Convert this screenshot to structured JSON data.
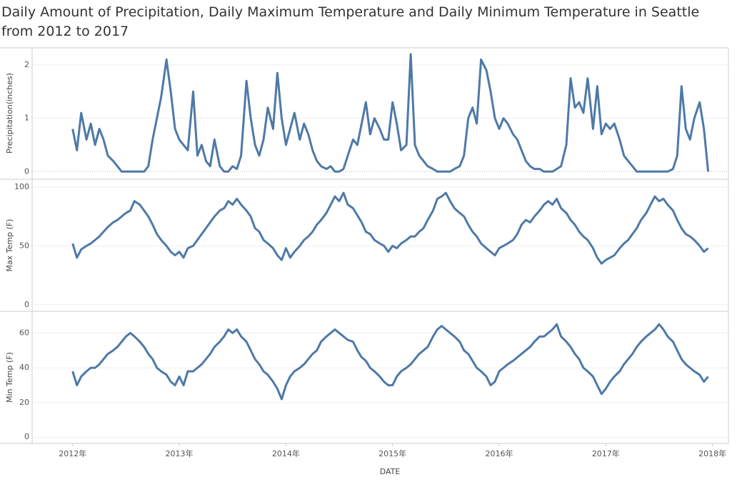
{
  "chart_data": {
    "type": "line",
    "title": "Daily Amount of Precipitation, Daily Maximum Temperature and Daily Minimum Temperature in Seattle from 2012 to 2017",
    "xlabel": "DATE",
    "xlim": [
      2011.62,
      2018.15
    ],
    "xticks": [
      {
        "value": 2012,
        "label": "2012年"
      },
      {
        "value": 2013,
        "label": "2013年"
      },
      {
        "value": 2014,
        "label": "2014年"
      },
      {
        "value": 2015,
        "label": "2015年"
      },
      {
        "value": 2016,
        "label": "2016年"
      },
      {
        "value": 2017,
        "label": "2017年"
      },
      {
        "value": 2018,
        "label": "2018年"
      }
    ],
    "grid": true,
    "x": [
      2012.0,
      2012.04,
      2012.08,
      2012.13,
      2012.17,
      2012.21,
      2012.25,
      2012.29,
      2012.33,
      2012.38,
      2012.42,
      2012.46,
      2012.5,
      2012.54,
      2012.58,
      2012.63,
      2012.67,
      2012.71,
      2012.75,
      2012.79,
      2012.83,
      2012.88,
      2012.92,
      2012.96,
      2013.0,
      2013.04,
      2013.08,
      2013.13,
      2013.17,
      2013.21,
      2013.25,
      2013.29,
      2013.33,
      2013.38,
      2013.42,
      2013.46,
      2013.5,
      2013.54,
      2013.58,
      2013.63,
      2013.67,
      2013.71,
      2013.75,
      2013.79,
      2013.83,
      2013.88,
      2013.92,
      2013.96,
      2014.0,
      2014.04,
      2014.08,
      2014.13,
      2014.17,
      2014.21,
      2014.25,
      2014.29,
      2014.33,
      2014.38,
      2014.42,
      2014.46,
      2014.5,
      2014.54,
      2014.58,
      2014.63,
      2014.67,
      2014.71,
      2014.75,
      2014.79,
      2014.83,
      2014.88,
      2014.92,
      2014.96,
      2015.0,
      2015.04,
      2015.08,
      2015.13,
      2015.17,
      2015.21,
      2015.25,
      2015.29,
      2015.33,
      2015.38,
      2015.42,
      2015.46,
      2015.5,
      2015.54,
      2015.58,
      2015.63,
      2015.67,
      2015.71,
      2015.75,
      2015.79,
      2015.83,
      2015.88,
      2015.92,
      2015.96,
      2016.0,
      2016.04,
      2016.08,
      2016.13,
      2016.17,
      2016.21,
      2016.25,
      2016.29,
      2016.33,
      2016.38,
      2016.42,
      2016.46,
      2016.5,
      2016.54,
      2016.58,
      2016.63,
      2016.67,
      2016.71,
      2016.75,
      2016.79,
      2016.83,
      2016.88,
      2016.92,
      2016.96,
      2017.0,
      2017.04,
      2017.08,
      2017.13,
      2017.17,
      2017.21,
      2017.25,
      2017.29,
      2017.33,
      2017.38,
      2017.42,
      2017.46,
      2017.5,
      2017.54,
      2017.58,
      2017.63,
      2017.67,
      2017.71,
      2017.75,
      2017.79,
      2017.83,
      2017.88,
      2017.92,
      2017.96
    ],
    "series": [
      {
        "name": "Precipitation(inches)",
        "color": "#4e79a7",
        "ylim": [
          -0.13,
          2.32
        ],
        "yticks": [
          0,
          1,
          2
        ],
        "zero_line": true,
        "values": [
          0.8,
          0.4,
          1.1,
          0.6,
          0.9,
          0.5,
          0.8,
          0.6,
          0.3,
          0.2,
          0.1,
          0.0,
          0.0,
          0.0,
          0.0,
          0.0,
          0.0,
          0.1,
          0.6,
          1.0,
          1.4,
          2.1,
          1.5,
          0.8,
          0.6,
          0.5,
          0.4,
          1.5,
          0.3,
          0.5,
          0.2,
          0.1,
          0.6,
          0.1,
          0.0,
          0.0,
          0.1,
          0.05,
          0.3,
          1.7,
          1.0,
          0.5,
          0.3,
          0.6,
          1.2,
          0.8,
          1.85,
          1.0,
          0.5,
          0.8,
          1.1,
          0.6,
          0.9,
          0.7,
          0.4,
          0.2,
          0.1,
          0.05,
          0.1,
          0.0,
          0.0,
          0.05,
          0.3,
          0.6,
          0.5,
          0.9,
          1.3,
          0.7,
          1.0,
          0.8,
          0.6,
          0.6,
          1.3,
          0.9,
          0.4,
          0.5,
          2.2,
          0.5,
          0.3,
          0.2,
          0.1,
          0.05,
          0.0,
          0.0,
          0.0,
          0.0,
          0.05,
          0.1,
          0.3,
          1.0,
          1.2,
          0.9,
          2.1,
          1.9,
          1.5,
          1.0,
          0.8,
          1.0,
          0.9,
          0.7,
          0.6,
          0.4,
          0.2,
          0.1,
          0.05,
          0.05,
          0.0,
          0.0,
          0.0,
          0.05,
          0.1,
          0.5,
          1.75,
          1.2,
          1.3,
          1.1,
          1.75,
          0.8,
          1.6,
          0.7,
          0.9,
          0.8,
          0.9,
          0.6,
          0.3,
          0.2,
          0.1,
          0.0,
          0.0,
          0.0,
          0.0,
          0.0,
          0.0,
          0.0,
          0.0,
          0.05,
          0.3,
          1.6,
          0.8,
          0.6,
          1.0,
          1.3,
          0.8,
          0.0
        ]
      },
      {
        "name": "Max Temp (F)",
        "color": "#4e79a7",
        "ylim": [
          -5,
          106
        ],
        "yticks": [
          0,
          50,
          100
        ],
        "values": [
          52,
          40,
          47,
          50,
          52,
          55,
          58,
          62,
          66,
          70,
          72,
          75,
          78,
          80,
          88,
          85,
          80,
          75,
          68,
          60,
          55,
          50,
          45,
          42,
          45,
          40,
          48,
          50,
          55,
          60,
          65,
          70,
          75,
          80,
          82,
          88,
          85,
          90,
          85,
          80,
          75,
          65,
          62,
          55,
          52,
          48,
          42,
          38,
          48,
          40,
          45,
          50,
          55,
          58,
          62,
          68,
          72,
          78,
          85,
          92,
          88,
          95,
          85,
          82,
          76,
          70,
          62,
          60,
          55,
          52,
          50,
          45,
          50,
          48,
          52,
          55,
          58,
          58,
          62,
          65,
          72,
          80,
          90,
          92,
          95,
          88,
          82,
          78,
          75,
          68,
          62,
          58,
          52,
          48,
          45,
          42,
          48,
          50,
          52,
          55,
          60,
          68,
          72,
          70,
          75,
          80,
          85,
          88,
          85,
          90,
          82,
          78,
          72,
          68,
          62,
          58,
          55,
          48,
          40,
          35,
          38,
          40,
          42,
          48,
          52,
          55,
          60,
          65,
          72,
          78,
          85,
          92,
          88,
          90,
          85,
          80,
          72,
          65,
          60,
          58,
          55,
          50,
          45,
          48
        ]
      },
      {
        "name": "Min Temp (F)",
        "color": "#4e79a7",
        "ylim": [
          -3,
          72
        ],
        "yticks": [
          0,
          20,
          40,
          60
        ],
        "values": [
          38,
          30,
          35,
          38,
          40,
          40,
          42,
          45,
          48,
          50,
          52,
          55,
          58,
          60,
          58,
          55,
          52,
          48,
          45,
          40,
          38,
          36,
          32,
          30,
          35,
          30,
          38,
          38,
          40,
          42,
          45,
          48,
          52,
          55,
          58,
          62,
          60,
          62,
          58,
          55,
          50,
          45,
          42,
          38,
          36,
          32,
          28,
          22,
          30,
          35,
          38,
          40,
          42,
          45,
          48,
          50,
          55,
          58,
          60,
          62,
          60,
          58,
          56,
          55,
          50,
          46,
          44,
          40,
          38,
          35,
          32,
          30,
          30,
          35,
          38,
          40,
          42,
          45,
          48,
          50,
          52,
          58,
          62,
          64,
          62,
          60,
          58,
          55,
          50,
          48,
          44,
          40,
          38,
          35,
          30,
          32,
          38,
          40,
          42,
          44,
          46,
          48,
          50,
          52,
          55,
          58,
          58,
          60,
          62,
          65,
          58,
          55,
          52,
          48,
          45,
          40,
          38,
          35,
          30,
          25,
          28,
          32,
          35,
          38,
          42,
          45,
          48,
          52,
          55,
          58,
          60,
          62,
          65,
          62,
          58,
          55,
          50,
          45,
          42,
          40,
          38,
          36,
          32,
          35
        ]
      }
    ]
  }
}
